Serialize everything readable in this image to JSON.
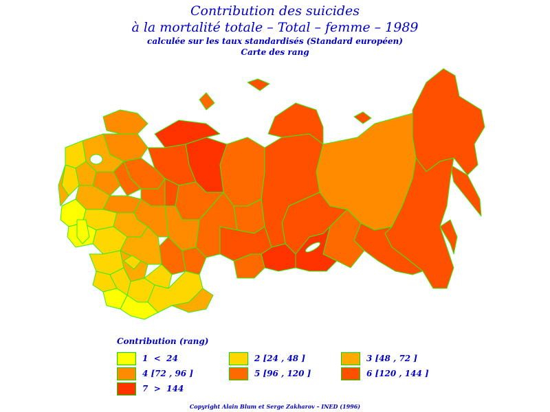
{
  "title": {
    "line1": "Contribution des suicides",
    "line2": "à la mortalité totale  –  Total  –  femme  –  1989",
    "line3": "calculée sur les taux standardisés (Standard européen)",
    "line4": "Carte des rang"
  },
  "colors": {
    "border": "#33ee11",
    "text": "#0000cc",
    "class1": "#ffff00",
    "class2": "#ffd700",
    "class3": "#ffaa00",
    "class4": "#ff8c00",
    "class5": "#ff6a00",
    "class6": "#ff5000",
    "class7": "#ff3300"
  },
  "legend": {
    "title": "Contribution (rang)",
    "items": [
      {
        "label": "1  <  24",
        "color": "#ffff00"
      },
      {
        "label": "2 [24 , 48 ]",
        "color": "#ffd700"
      },
      {
        "label": "3 [48 , 72 ]",
        "color": "#ffaa00"
      },
      {
        "label": "4 [72 , 96 ]",
        "color": "#ff8c00"
      },
      {
        "label": "5 [96 , 120 ]",
        "color": "#ff6a00"
      },
      {
        "label": "6 [120 , 144 ]",
        "color": "#ff5000"
      },
      {
        "label": "7  >  144",
        "color": "#ff3300"
      }
    ]
  },
  "copyright": "Copyright  Alain  Blum  et  Serge  Zakharov  –  INED (1996)"
}
